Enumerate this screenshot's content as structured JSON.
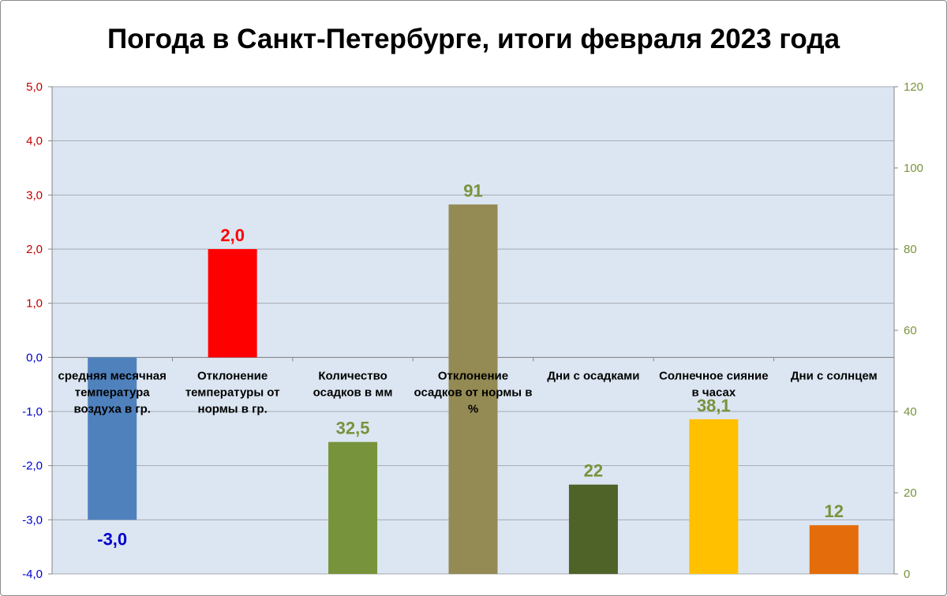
{
  "chart_data": {
    "type": "bar",
    "title": "Погода в Санкт-Петербурге, итоги февраля 2023 года",
    "categories": [
      [
        "средняя месячная",
        "температура",
        "воздуха в гр."
      ],
      [
        "Отклонение",
        "температуры от",
        "нормы в гр."
      ],
      [
        "Количество",
        "осадков в мм"
      ],
      [
        "Отклонение",
        "осадков от нормы в",
        "%"
      ],
      [
        "Дни с осадками"
      ],
      [
        "Солнечное сияние",
        "в часах"
      ],
      [
        "Дни с солнцем"
      ]
    ],
    "series": [
      {
        "values": [
          -3.0,
          2.0,
          null,
          null,
          null,
          null,
          null
        ],
        "axis": "left"
      },
      {
        "values": [
          null,
          null,
          32.5,
          91,
          22,
          38.1,
          12
        ],
        "axis": "right"
      }
    ],
    "data_labels": [
      "-3,0",
      "2,0",
      "32,5",
      "91",
      "22",
      "38,1",
      "12"
    ],
    "bar_colors": [
      "#4f81bd",
      "#ff0000",
      "#77933c",
      "#948a54",
      "#4f6228",
      "#ffc000",
      "#e46c0a"
    ],
    "label_colors": [
      "#0000cc",
      "#ff0000",
      "#77933c",
      "#77933c",
      "#77933c",
      "#77933c",
      "#77933c"
    ],
    "y_left": {
      "ylim": [
        -4,
        5
      ],
      "ticks": [
        "-4,0",
        "-3,0",
        "-2,0",
        "-1,0",
        "0,0",
        "1,0",
        "2,0",
        "3,0",
        "4,0",
        "5,0"
      ],
      "tick_values": [
        -4,
        -3,
        -2,
        -1,
        0,
        1,
        2,
        3,
        4,
        5
      ],
      "color_positive": "#c00000",
      "color_negative": "#0000cc"
    },
    "y_right": {
      "ylim": [
        0,
        120
      ],
      "ticks": [
        "0",
        "20",
        "40",
        "60",
        "80",
        "100",
        "120"
      ],
      "tick_values": [
        0,
        20,
        40,
        60,
        80,
        100,
        120
      ],
      "color": "#77933c"
    },
    "grid": true,
    "plot_background": "#dce6f2",
    "gridline_color": "#a6aab2"
  }
}
